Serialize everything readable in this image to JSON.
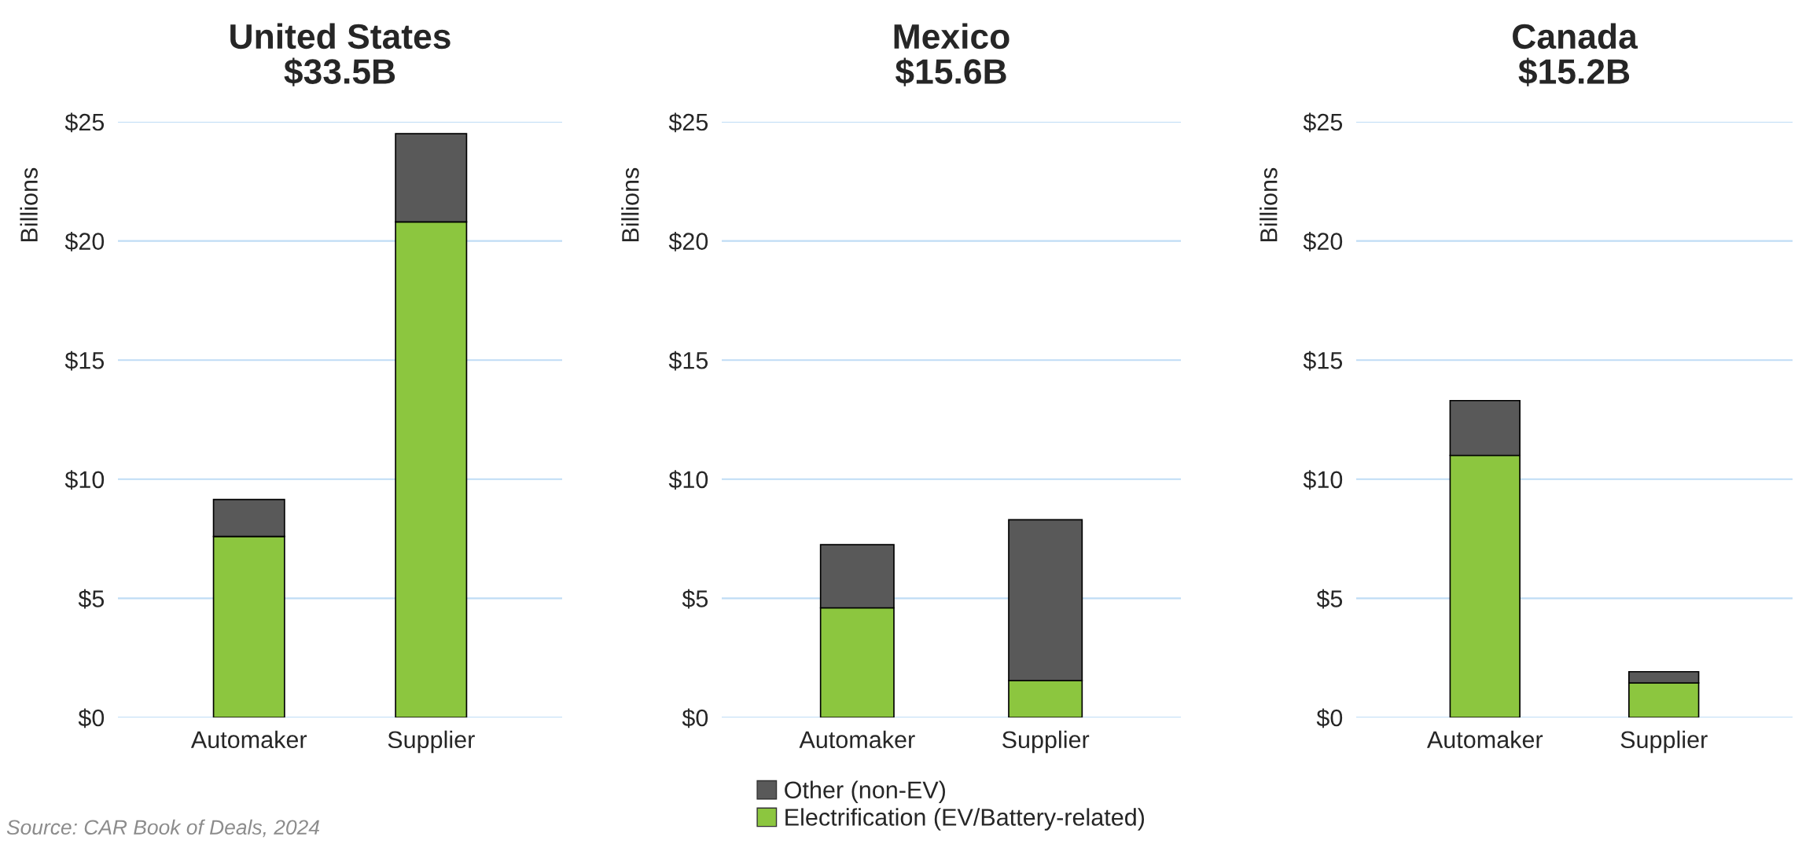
{
  "chart_data": [
    {
      "type": "bar",
      "title": "United States\n$33.5B",
      "ylabel": "Billions",
      "categories": [
        "Automaker",
        "Supplier"
      ],
      "stacked": true,
      "grid": "y",
      "legend": false,
      "ylim": [
        0,
        25
      ],
      "yticks": [
        {
          "value": 0,
          "label": "$0"
        },
        {
          "value": 5,
          "label": "$5"
        },
        {
          "value": 10,
          "label": "$10"
        },
        {
          "value": 15,
          "label": "$15"
        },
        {
          "value": 20,
          "label": "$20"
        },
        {
          "value": 25,
          "label": "$25"
        }
      ],
      "series": [
        {
          "color": "#8cc63f",
          "values": [
            7.6,
            20.8
          ]
        },
        {
          "color": "#595959",
          "values": [
            1.55,
            3.7
          ]
        }
      ],
      "annotations": [
        "Source: CAR Book of Deals, 2024"
      ]
    },
    {
      "type": "bar",
      "title": "Mexico\n$15.6B",
      "ylabel": "Billions",
      "categories": [
        "Automaker",
        "Supplier"
      ],
      "stacked": true,
      "grid": "y",
      "legend": "bottom",
      "ylim": [
        0,
        25
      ],
      "yticks": [
        {
          "value": 0,
          "label": "$0"
        },
        {
          "value": 5,
          "label": "$5"
        },
        {
          "value": 10,
          "label": "$10"
        },
        {
          "value": 15,
          "label": "$15"
        },
        {
          "value": 20,
          "label": "$20"
        },
        {
          "value": 25,
          "label": "$25"
        }
      ],
      "series": [
        {
          "name": "Electrification (EV/Battery-related)",
          "color": "#8cc63f",
          "values": [
            4.6,
            1.55
          ]
        },
        {
          "name": "Other (non-EV)",
          "color": "#595959",
          "values": [
            2.65,
            6.75
          ]
        }
      ]
    },
    {
      "type": "bar",
      "title": "Canada\n$15.2B",
      "ylabel": "Billions",
      "categories": [
        "Automaker",
        "Supplier"
      ],
      "stacked": true,
      "grid": "y",
      "legend": false,
      "ylim": [
        0,
        25
      ],
      "yticks": [
        {
          "value": 0,
          "label": "$0"
        },
        {
          "value": 5,
          "label": "$5"
        },
        {
          "value": 10,
          "label": "$10"
        },
        {
          "value": 15,
          "label": "$15"
        },
        {
          "value": 20,
          "label": "$20"
        },
        {
          "value": 25,
          "label": "$25"
        }
      ],
      "series": [
        {
          "color": "#8cc63f",
          "values": [
            11.0,
            1.45
          ]
        },
        {
          "color": "#595959",
          "values": [
            2.3,
            0.47
          ]
        }
      ]
    }
  ]
}
